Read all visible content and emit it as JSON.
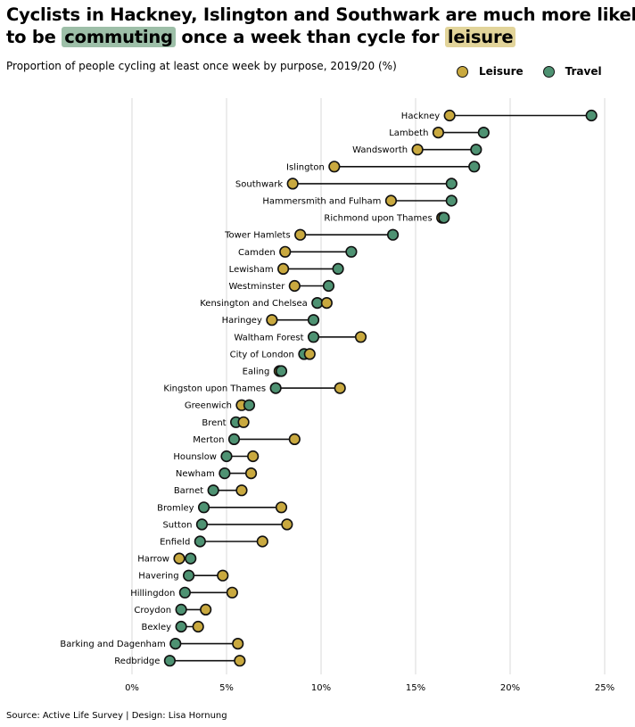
{
  "title": {
    "line1": "Cyclists in Hackney, Islington and Southwark are much more likely",
    "line2_pre": "to be ",
    "highlight_commute": "commuting",
    "line2_mid": " once a week than cycle for ",
    "highlight_leisure": "leisure"
  },
  "subtitle": "Proportion of people cycling at least once  week by purpose, 2019/20 (%)",
  "legend": {
    "leisure": "Leisure",
    "travel": "Travel"
  },
  "source": "Source: Active Life Survey  |  Design: Lisa Hornung",
  "colors": {
    "leisure": "#c9a93f",
    "travel": "#4e9272",
    "commute_highlight": "#9dbfa8",
    "leisure_highlight": "#e2d49a",
    "grid": "#d9d9d9"
  },
  "chart_data": {
    "type": "dumbbell",
    "xlim": [
      0,
      25
    ],
    "xticks": [
      0,
      5,
      10,
      15,
      20,
      25
    ],
    "xtick_labels": [
      "0%",
      "5%",
      "10%",
      "15%",
      "20%",
      "25%"
    ],
    "grid": "vertical",
    "legend_position": "top-right",
    "series": [
      {
        "name": "Leisure"
      },
      {
        "name": "Travel"
      }
    ],
    "rows": [
      {
        "label": "Hackney",
        "leisure": 16.8,
        "travel": 24.3
      },
      {
        "label": "Lambeth",
        "leisure": 16.2,
        "travel": 18.6
      },
      {
        "label": "Wandsworth",
        "leisure": 15.1,
        "travel": 18.2
      },
      {
        "label": "Islington",
        "leisure": 10.7,
        "travel": 18.1
      },
      {
        "label": "Southwark",
        "leisure": 8.5,
        "travel": 16.9
      },
      {
        "label": "Hammersmith and Fulham",
        "leisure": 13.7,
        "travel": 16.9
      },
      {
        "label": "Richmond upon Thames",
        "leisure": 16.4,
        "travel": 16.5
      },
      {
        "label": "Tower Hamlets",
        "leisure": 8.9,
        "travel": 13.8
      },
      {
        "label": "Camden",
        "leisure": 8.1,
        "travel": 11.6
      },
      {
        "label": "Lewisham",
        "leisure": 8.0,
        "travel": 10.9
      },
      {
        "label": "Westminster",
        "leisure": 8.6,
        "travel": 10.4
      },
      {
        "label": "Kensington and Chelsea",
        "leisure": 10.3,
        "travel": 9.8
      },
      {
        "label": "Haringey",
        "leisure": 7.4,
        "travel": 9.6
      },
      {
        "label": "Waltham Forest",
        "leisure": 12.1,
        "travel": 9.6
      },
      {
        "label": "City of London",
        "leisure": 9.4,
        "travel": 9.1
      },
      {
        "label": "Ealing",
        "leisure": 7.8,
        "travel": 7.9
      },
      {
        "label": "Kingston upon Thames",
        "leisure": 11.0,
        "travel": 7.6
      },
      {
        "label": "Greenwich",
        "leisure": 5.8,
        "travel": 6.2
      },
      {
        "label": "Brent",
        "leisure": 5.9,
        "travel": 5.5
      },
      {
        "label": "Merton",
        "leisure": 8.6,
        "travel": 5.4
      },
      {
        "label": "Hounslow",
        "leisure": 6.4,
        "travel": 5.0
      },
      {
        "label": "Newham",
        "leisure": 6.3,
        "travel": 4.9
      },
      {
        "label": "Barnet",
        "leisure": 5.8,
        "travel": 4.3
      },
      {
        "label": "Bromley",
        "leisure": 7.9,
        "travel": 3.8
      },
      {
        "label": "Sutton",
        "leisure": 8.2,
        "travel": 3.7
      },
      {
        "label": "Enfield",
        "leisure": 6.9,
        "travel": 3.6
      },
      {
        "label": "Harrow",
        "leisure": 2.5,
        "travel": 3.1
      },
      {
        "label": "Havering",
        "leisure": 4.8,
        "travel": 3.0
      },
      {
        "label": "Hillingdon",
        "leisure": 5.3,
        "travel": 2.8
      },
      {
        "label": "Croydon",
        "leisure": 3.9,
        "travel": 2.6
      },
      {
        "label": "Bexley",
        "leisure": 3.5,
        "travel": 2.6
      },
      {
        "label": "Barking and Dagenham",
        "leisure": 5.6,
        "travel": 2.3
      },
      {
        "label": "Redbridge",
        "leisure": 5.7,
        "travel": 2.0
      }
    ]
  }
}
